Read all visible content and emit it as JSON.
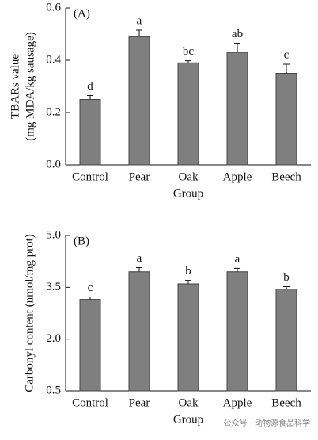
{
  "chart_data": [
    {
      "type": "bar",
      "panel": "(A)",
      "y_label": [
        "TBARs value",
        "(mg MDA/kg sausage)"
      ],
      "x_label": "Group",
      "categories": [
        "Control",
        "Pear",
        "Oak",
        "Apple",
        "Beech"
      ],
      "values": [
        0.25,
        0.49,
        0.39,
        0.43,
        0.35
      ],
      "errors": [
        0.015,
        0.025,
        0.008,
        0.035,
        0.035
      ],
      "letters": [
        "d",
        "a",
        "bc",
        "ab",
        "c"
      ],
      "color": "#7f7f7f",
      "ylim": [
        0,
        0.6
      ],
      "yticks": [
        {
          "value": 0,
          "label": "0.0"
        },
        0.2,
        0.4,
        0.6
      ]
    },
    {
      "type": "bar",
      "panel": "(B)",
      "y_label": [
        "Carbonyl content (nmol/mg prot)"
      ],
      "x_label": "Group",
      "categories": [
        "Control",
        "Pear",
        "Oak",
        "Apple",
        "Beech"
      ],
      "values": [
        3.15,
        3.95,
        3.6,
        3.95,
        3.45
      ],
      "errors": [
        0.07,
        0.12,
        0.1,
        0.1,
        0.07
      ],
      "letters": [
        "c",
        "a",
        "b",
        "a",
        "b"
      ],
      "color": "#7f7f7f",
      "ylim": [
        0.5,
        5.0
      ],
      "yticks": [
        0.5,
        {
          "value": 2,
          "label": "2.0"
        },
        3.5,
        {
          "value": 5,
          "label": "5.0"
        }
      ]
    }
  ],
  "watermark": "公众号 · 动物源食品科学"
}
